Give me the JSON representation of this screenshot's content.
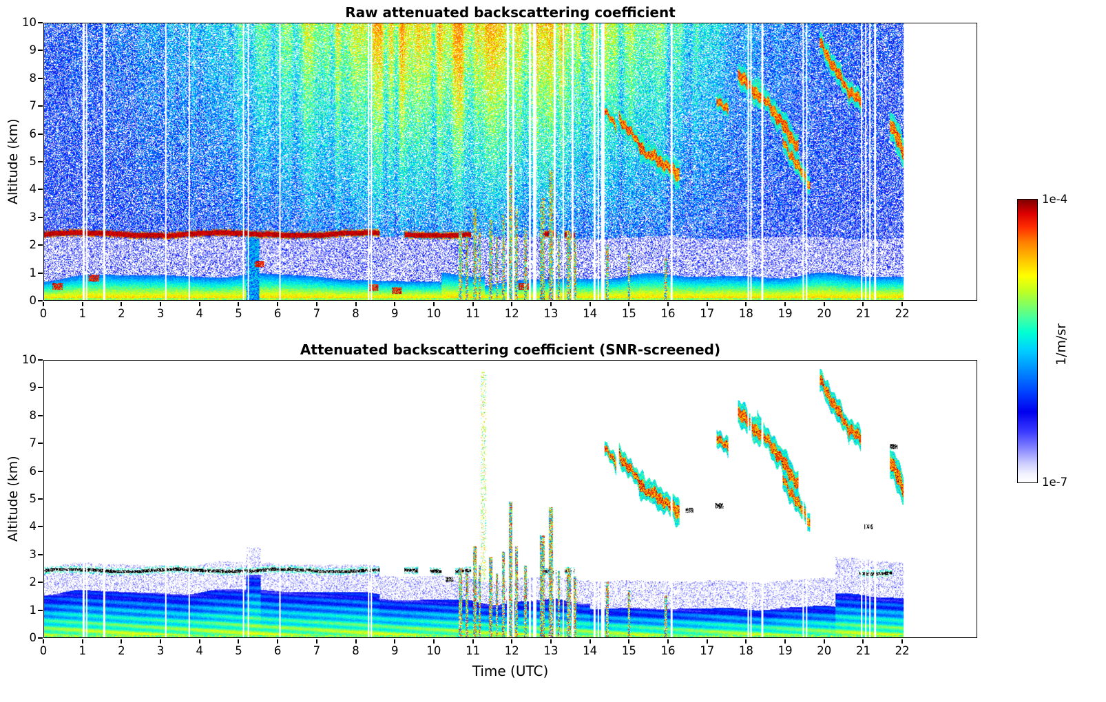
{
  "figure": {
    "background": "#ffffff",
    "colorbar": {
      "top_label": "1e-4",
      "bottom_label": "1e-7",
      "unit": "1/m/sr",
      "orientation": "vertical",
      "scale": "log",
      "stops": [
        [
          0.0,
          "#ffffff"
        ],
        [
          0.03,
          "#f2f2ff"
        ],
        [
          0.07,
          "#c9c9ff"
        ],
        [
          0.12,
          "#8585ff"
        ],
        [
          0.18,
          "#3a3aff"
        ],
        [
          0.25,
          "#0000ee"
        ],
        [
          0.32,
          "#0042ff"
        ],
        [
          0.4,
          "#0090ff"
        ],
        [
          0.47,
          "#00d2ff"
        ],
        [
          0.53,
          "#00ffd2"
        ],
        [
          0.58,
          "#44ffa2"
        ],
        [
          0.63,
          "#84ff5e"
        ],
        [
          0.68,
          "#c4ff1e"
        ],
        [
          0.73,
          "#ffff00"
        ],
        [
          0.79,
          "#ffc000"
        ],
        [
          0.85,
          "#ff7f00"
        ],
        [
          0.9,
          "#ff3000"
        ],
        [
          0.95,
          "#dd0000"
        ],
        [
          1.0,
          "#7f0000"
        ]
      ]
    }
  },
  "chart_data": [
    {
      "type": "heatmap",
      "panel": "raw",
      "title": "Raw attenuated backscattering coefficient",
      "ylabel": "Altitude (km)",
      "xlabel": "",
      "x_range": [
        0,
        23.92
      ],
      "y_range": [
        0,
        10
      ],
      "x_ticks": [
        0,
        1,
        2,
        3,
        4,
        5,
        6,
        7,
        8,
        9,
        10,
        11,
        12,
        13,
        14,
        15,
        16,
        17,
        18,
        19,
        20,
        21,
        22
      ],
      "y_ticks": [
        0,
        1,
        2,
        3,
        4,
        5,
        6,
        7,
        8,
        9,
        10
      ],
      "value_min": "1e-7",
      "value_max": "1e-4",
      "value_unit": "1/m/sr",
      "features": {
        "data_t_max": 22.05,
        "aerosol_layer": {
          "altitude_km": 2.4,
          "solid_t": [
            0,
            8.6
          ],
          "patch_t": [
            [
              9.25,
              10.95
            ],
            [
              12.78,
              13.15
            ],
            [
              13.35,
              13.62
            ]
          ]
        },
        "boundary_layer_top_km": [
          0.5,
          1.2
        ],
        "solar_noise": {
          "peak_t": 10.8,
          "width_t": 4.8
        },
        "clouds": [
          [
            14.35,
            14.68,
            7.0,
            6.2,
            0.3
          ],
          [
            14.75,
            15.55,
            6.6,
            5.1,
            0.35
          ],
          [
            15.25,
            16.3,
            5.6,
            4.5,
            0.4
          ],
          [
            17.25,
            17.55,
            7.3,
            6.8,
            0.3
          ],
          [
            17.8,
            18.55,
            8.15,
            7.1,
            0.35
          ],
          [
            18.3,
            19.35,
            7.7,
            5.5,
            0.4
          ],
          [
            18.95,
            19.65,
            5.8,
            4.1,
            0.35
          ],
          [
            19.9,
            20.65,
            9.3,
            7.5,
            0.35
          ],
          [
            20.45,
            20.95,
            7.9,
            7.15,
            0.3
          ],
          [
            21.7,
            22.2,
            6.4,
            4.9,
            0.45
          ]
        ],
        "precip_plumes": [
          [
            10.68,
            0.1,
            2.5
          ],
          [
            10.85,
            0.07,
            2.3
          ],
          [
            11.05,
            0.08,
            3.3
          ],
          [
            11.18,
            0.06,
            2.6
          ],
          [
            11.45,
            0.09,
            2.9
          ],
          [
            11.62,
            0.06,
            2.3
          ],
          [
            11.78,
            0.08,
            3.1
          ],
          [
            11.97,
            0.1,
            4.9
          ],
          [
            12.12,
            0.07,
            3.3
          ],
          [
            12.35,
            0.08,
            2.6
          ],
          [
            12.78,
            0.12,
            3.7
          ],
          [
            13.0,
            0.09,
            4.7
          ],
          [
            13.2,
            0.06,
            2.4
          ],
          [
            13.46,
            0.1,
            2.5
          ],
          [
            13.62,
            0.07,
            2.2
          ],
          [
            14.45,
            0.08,
            2.0
          ],
          [
            15.0,
            0.06,
            1.7
          ],
          [
            15.95,
            0.06,
            1.5
          ]
        ],
        "red_blobs": [
          [
            0.35,
            0.5
          ],
          [
            1.28,
            0.8
          ],
          [
            5.52,
            1.3
          ],
          [
            8.45,
            0.45
          ],
          [
            9.05,
            0.35
          ],
          [
            12.3,
            0.5
          ]
        ],
        "gap_stripes": [
          [
            1.02,
            0.05
          ],
          [
            1.1,
            0.04
          ],
          [
            1.55,
            0.05
          ],
          [
            3.12,
            0.04
          ],
          [
            3.72,
            0.04
          ],
          [
            5.12,
            0.04
          ],
          [
            5.24,
            0.04
          ],
          [
            6.05,
            0.05
          ],
          [
            8.32,
            0.04
          ],
          [
            8.4,
            0.04
          ],
          [
            11.9,
            0.05
          ],
          [
            12.04,
            0.04
          ],
          [
            12.46,
            0.05
          ],
          [
            12.58,
            0.09
          ],
          [
            13.1,
            0.05
          ],
          [
            13.32,
            0.04
          ],
          [
            13.56,
            0.05
          ],
          [
            14.12,
            0.05
          ],
          [
            14.22,
            0.04
          ],
          [
            14.34,
            0.09
          ],
          [
            16.1,
            0.05
          ],
          [
            18.06,
            0.04
          ],
          [
            18.14,
            0.04
          ],
          [
            18.42,
            0.05
          ],
          [
            19.48,
            0.04
          ],
          [
            19.56,
            0.04
          ],
          [
            20.98,
            0.04
          ],
          [
            21.08,
            0.04
          ],
          [
            21.18,
            0.04
          ],
          [
            21.32,
            0.04
          ]
        ]
      }
    },
    {
      "type": "heatmap",
      "panel": "screened",
      "title": "Attenuated backscattering coefficient (SNR-screened)",
      "ylabel": "Altitude (km)",
      "xlabel": "Time (UTC)",
      "x_range": [
        0,
        23.92
      ],
      "y_range": [
        0,
        10
      ],
      "x_ticks": [
        0,
        1,
        2,
        3,
        4,
        5,
        6,
        7,
        8,
        9,
        10,
        11,
        12,
        13,
        14,
        15,
        16,
        17,
        18,
        19,
        20,
        21,
        22
      ],
      "y_ticks": [
        0,
        1,
        2,
        3,
        4,
        5,
        6,
        7,
        8,
        9,
        10
      ],
      "value_min": "1e-7",
      "value_max": "1e-4",
      "value_unit": "1/m/sr",
      "features": {
        "data_t_max": 22.05,
        "cap_patches": [
          [
            9.25,
            9.6
          ],
          [
            9.9,
            10.2
          ],
          [
            10.55,
            10.95
          ],
          [
            12.78,
            13.15
          ],
          [
            13.35,
            13.62
          ],
          [
            20.9,
            21.75
          ]
        ],
        "black_specks": [
          [
            17.32,
            4.75
          ],
          [
            21.15,
            4.0
          ],
          [
            21.8,
            6.9
          ],
          [
            16.55,
            4.6
          ],
          [
            10.4,
            2.1
          ]
        ],
        "clouds": [
          [
            14.35,
            14.68,
            7.0,
            6.2,
            0.3
          ],
          [
            14.75,
            15.55,
            6.6,
            5.1,
            0.35
          ],
          [
            15.25,
            16.3,
            5.6,
            4.5,
            0.4
          ],
          [
            17.25,
            17.55,
            7.3,
            6.8,
            0.3
          ],
          [
            17.8,
            18.55,
            8.15,
            7.1,
            0.35
          ],
          [
            18.3,
            19.35,
            7.7,
            5.5,
            0.4
          ],
          [
            18.95,
            19.65,
            5.8,
            4.1,
            0.35
          ],
          [
            19.9,
            20.65,
            9.3,
            7.5,
            0.35
          ],
          [
            20.45,
            20.95,
            7.9,
            7.15,
            0.3
          ],
          [
            21.7,
            22.2,
            6.4,
            4.9,
            0.45
          ]
        ],
        "precip_plumes": [
          [
            10.68,
            0.1,
            2.5
          ],
          [
            10.85,
            0.07,
            2.3
          ],
          [
            11.05,
            0.08,
            3.3
          ],
          [
            11.18,
            0.06,
            2.6
          ],
          [
            11.45,
            0.09,
            2.9
          ],
          [
            11.62,
            0.06,
            2.3
          ],
          [
            11.78,
            0.08,
            3.1
          ],
          [
            11.97,
            0.1,
            4.9
          ],
          [
            12.12,
            0.07,
            3.3
          ],
          [
            12.35,
            0.08,
            2.6
          ],
          [
            12.78,
            0.12,
            3.7
          ],
          [
            13.0,
            0.09,
            4.7
          ],
          [
            13.2,
            0.06,
            2.4
          ],
          [
            13.46,
            0.1,
            2.5
          ],
          [
            13.62,
            0.07,
            2.2
          ],
          [
            14.45,
            0.08,
            2.0
          ],
          [
            15.0,
            0.06,
            1.7
          ],
          [
            15.95,
            0.06,
            1.5
          ]
        ],
        "gap_stripes": [
          [
            1.02,
            0.05
          ],
          [
            1.1,
            0.04
          ],
          [
            1.55,
            0.05
          ],
          [
            3.12,
            0.04
          ],
          [
            3.72,
            0.04
          ],
          [
            5.12,
            0.04
          ],
          [
            5.24,
            0.04
          ],
          [
            6.05,
            0.05
          ],
          [
            8.32,
            0.04
          ],
          [
            8.4,
            0.04
          ],
          [
            11.9,
            0.05
          ],
          [
            12.04,
            0.04
          ],
          [
            12.46,
            0.05
          ],
          [
            12.58,
            0.09
          ],
          [
            13.1,
            0.05
          ],
          [
            13.32,
            0.04
          ],
          [
            13.56,
            0.05
          ],
          [
            14.12,
            0.05
          ],
          [
            14.22,
            0.04
          ],
          [
            14.34,
            0.09
          ],
          [
            16.1,
            0.05
          ],
          [
            18.06,
            0.04
          ],
          [
            18.14,
            0.04
          ],
          [
            18.42,
            0.05
          ],
          [
            19.48,
            0.04
          ],
          [
            19.56,
            0.04
          ],
          [
            20.98,
            0.04
          ],
          [
            21.08,
            0.04
          ],
          [
            21.18,
            0.04
          ],
          [
            21.32,
            0.04
          ]
        ]
      }
    }
  ]
}
